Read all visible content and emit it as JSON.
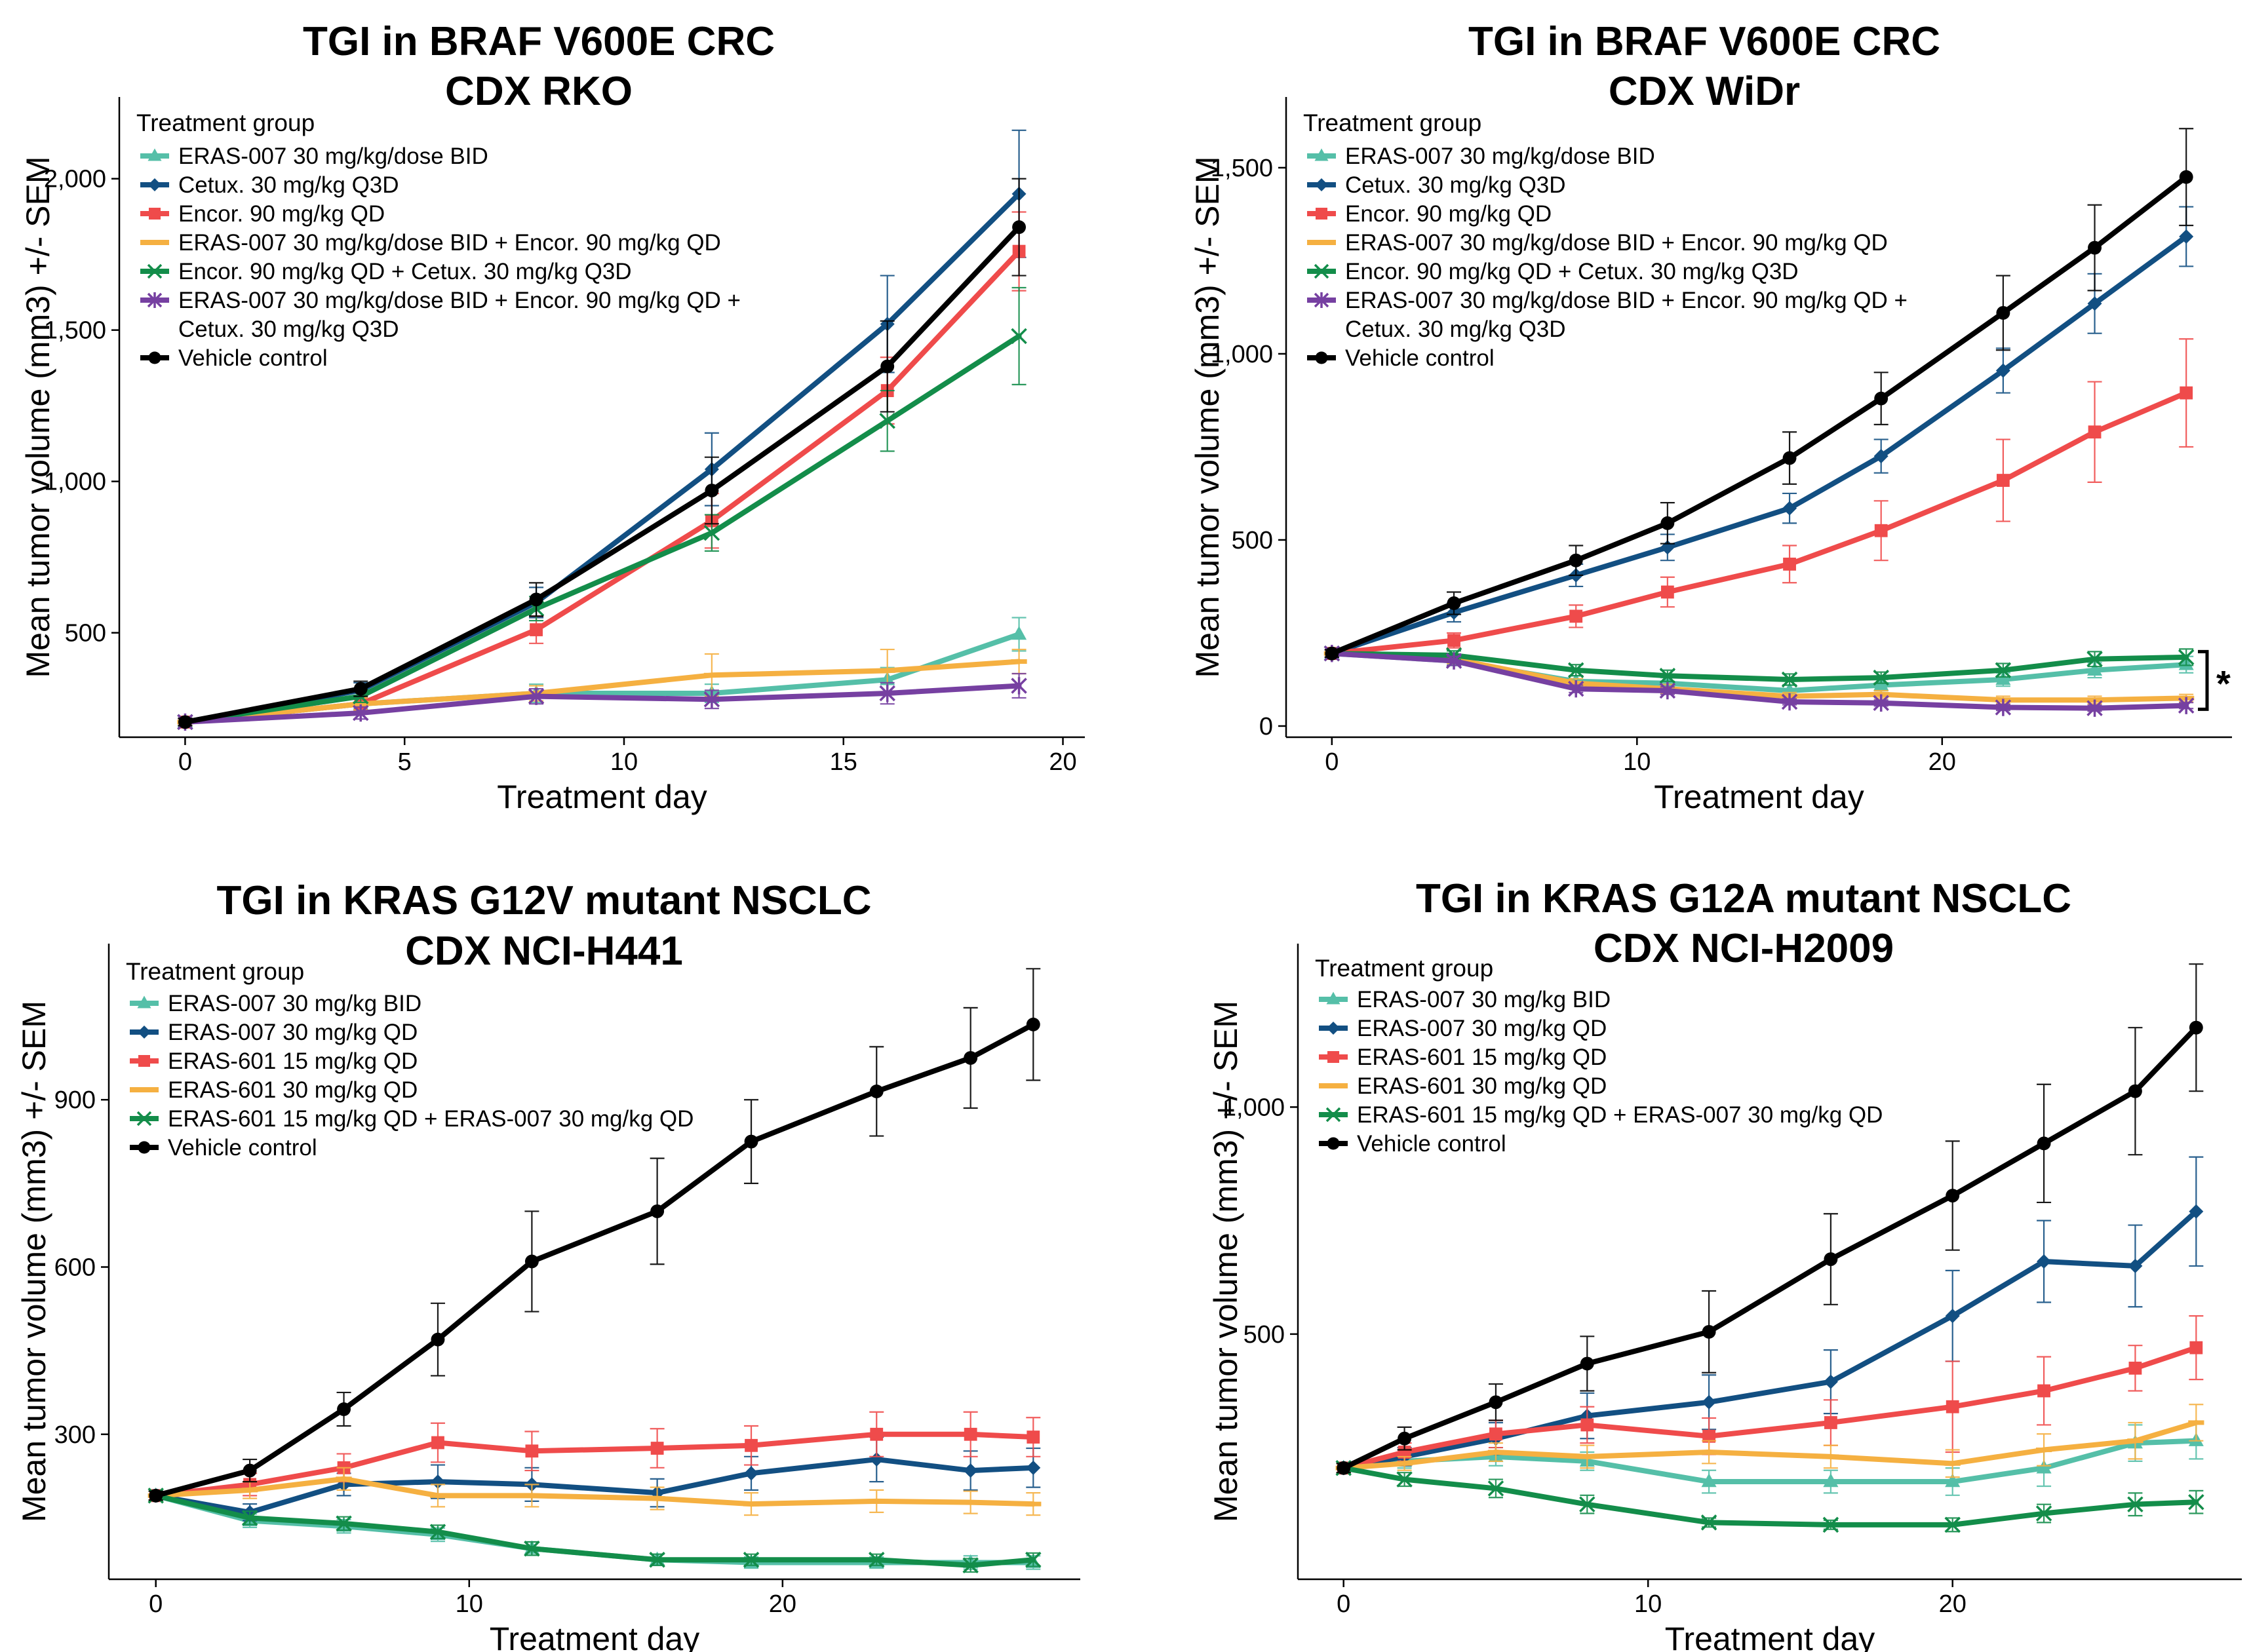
{
  "chart_data": [
    {
      "type": "line",
      "title": "TGI in BRAF V600E CRC",
      "subtitle": "CDX RKO",
      "xlabel": "Treatment day",
      "ylabel": "Mean tumor volume (mm3) +/- SEM",
      "xlim": [
        -1.5,
        20.5
      ],
      "ylim": [
        155,
        2270
      ],
      "xticks": [
        0,
        5,
        10,
        15,
        20
      ],
      "yticks": [
        500,
        1000,
        1500,
        2000
      ],
      "ytick_labels": [
        "500",
        "1,000",
        "1,500",
        "2,000"
      ],
      "legend_title": "Treatment group",
      "legend_position": "top-left",
      "annotation": "",
      "series": [
        {
          "name": "ERAS-007 30 mg/kg/dose BID",
          "color": "#55BFA8",
          "marker": "triangle",
          "x": [
            0,
            4,
            8,
            12,
            16,
            19
          ],
          "values": [
            205,
            265,
            300,
            300,
            345,
            495
          ],
          "err": [
            12,
            20,
            30,
            30,
            40,
            55
          ]
        },
        {
          "name": "Cetux. 30 mg/kg Q3D",
          "color": "#124F82",
          "marker": "diamond",
          "x": [
            0,
            4,
            8,
            12,
            16,
            19
          ],
          "values": [
            205,
            310,
            600,
            1040,
            1520,
            1950
          ],
          "err": [
            12,
            25,
            50,
            120,
            160,
            210
          ]
        },
        {
          "name": "Encor. 90 mg/kg QD",
          "color": "#EF4B4B",
          "marker": "square",
          "x": [
            0,
            4,
            8,
            12,
            16,
            19
          ],
          "values": [
            205,
            265,
            510,
            870,
            1300,
            1760
          ],
          "err": [
            12,
            20,
            45,
            90,
            110,
            130
          ]
        },
        {
          "name": "ERAS-007 30 mg/kg/dose BID + Encor. 90 mg/kg QD",
          "color": "#F5B041",
          "marker": "dash",
          "x": [
            0,
            4,
            8,
            12,
            16,
            19
          ],
          "values": [
            205,
            265,
            300,
            360,
            375,
            405
          ],
          "err": [
            12,
            20,
            25,
            70,
            70,
            40
          ]
        },
        {
          "name": "Encor. 90 mg/kg QD + Cetux. 30 mg/kg Q3D",
          "color": "#138D4A",
          "marker": "x",
          "x": [
            0,
            4,
            8,
            12,
            16,
            19
          ],
          "values": [
            205,
            290,
            580,
            830,
            1200,
            1480
          ],
          "err": [
            12,
            20,
            40,
            60,
            100,
            160
          ]
        },
        {
          "name": "ERAS-007 30 mg/kg/dose BID + Encor. 90 mg/kg QD + Cetux. 30 mg/kg Q3D",
          "color": "#7640A1",
          "marker": "asterisk",
          "x": [
            0,
            4,
            8,
            12,
            16,
            19
          ],
          "values": [
            205,
            235,
            290,
            280,
            300,
            325
          ],
          "err": [
            12,
            20,
            25,
            30,
            35,
            40
          ]
        },
        {
          "name": "Vehicle control",
          "color": "#000000",
          "marker": "circle",
          "x": [
            0,
            4,
            8,
            12,
            16,
            19
          ],
          "values": [
            205,
            315,
            610,
            970,
            1380,
            1840
          ],
          "err": [
            12,
            25,
            55,
            110,
            150,
            160
          ]
        }
      ]
    },
    {
      "type": "line",
      "title": "TGI in BRAF V600E CRC",
      "subtitle": "CDX WiDr",
      "xlabel": "Treatment day",
      "ylabel": "Mean tumor volume (mm3) +/- SEM",
      "xlim": [
        -1.5,
        29.5
      ],
      "ylim": [
        -30,
        1690
      ],
      "xticks": [
        0,
        10,
        20
      ],
      "yticks": [
        0,
        500,
        1000,
        1500
      ],
      "ytick_labels": [
        "0",
        "500",
        "1,000",
        "1,500"
      ],
      "legend_title": "Treatment group",
      "legend_position": "top-left",
      "annotation": "*",
      "series": [
        {
          "name": "ERAS-007 30 mg/kg/dose BID",
          "color": "#55BFA8",
          "marker": "triangle",
          "x": [
            0,
            4,
            8,
            11,
            15,
            18,
            22,
            25,
            28
          ],
          "values": [
            195,
            175,
            120,
            115,
            95,
            110,
            125,
            150,
            165
          ],
          "err": [
            10,
            12,
            15,
            15,
            15,
            15,
            18,
            20,
            22
          ]
        },
        {
          "name": "Cetux. 30 mg/kg Q3D",
          "color": "#124F82",
          "marker": "diamond",
          "x": [
            0,
            4,
            8,
            11,
            15,
            18,
            22,
            25,
            28
          ],
          "values": [
            195,
            305,
            405,
            480,
            585,
            725,
            955,
            1135,
            1315
          ],
          "err": [
            10,
            25,
            30,
            35,
            40,
            45,
            60,
            80,
            80
          ]
        },
        {
          "name": "Encor. 90 mg/kg QD",
          "color": "#EF4B4B",
          "marker": "square",
          "x": [
            0,
            4,
            8,
            11,
            15,
            18,
            22,
            25,
            28
          ],
          "values": [
            195,
            230,
            295,
            360,
            435,
            525,
            660,
            790,
            895
          ],
          "err": [
            10,
            20,
            30,
            40,
            50,
            80,
            110,
            135,
            145
          ]
        },
        {
          "name": "ERAS-007 30 mg/kg/dose BID + Encor. 90 mg/kg QD",
          "color": "#F5B041",
          "marker": "dash",
          "x": [
            0,
            4,
            8,
            11,
            15,
            18,
            22,
            25,
            28
          ],
          "values": [
            195,
            180,
            115,
            100,
            80,
            85,
            70,
            70,
            75
          ],
          "err": [
            10,
            12,
            12,
            12,
            10,
            10,
            10,
            10,
            10
          ]
        },
        {
          "name": "Encor. 90 mg/kg QD + Cetux. 30 mg/kg Q3D",
          "color": "#138D4A",
          "marker": "x",
          "x": [
            0,
            4,
            8,
            11,
            15,
            18,
            22,
            25,
            28
          ],
          "values": [
            195,
            190,
            150,
            135,
            125,
            130,
            150,
            180,
            185
          ],
          "err": [
            10,
            12,
            15,
            15,
            15,
            15,
            18,
            20,
            22
          ]
        },
        {
          "name": "ERAS-007 30 mg/kg/dose BID + Encor. 90 mg/kg QD + Cetux. 30 mg/kg Q3D",
          "color": "#7640A1",
          "marker": "asterisk",
          "x": [
            0,
            4,
            8,
            11,
            15,
            18,
            22,
            25,
            28
          ],
          "values": [
            195,
            175,
            100,
            95,
            65,
            62,
            50,
            48,
            55
          ],
          "err": [
            10,
            12,
            10,
            10,
            8,
            8,
            8,
            8,
            8
          ]
        },
        {
          "name": "Vehicle control",
          "color": "#000000",
          "marker": "circle",
          "x": [
            0,
            4,
            8,
            11,
            15,
            18,
            22,
            25,
            28
          ],
          "values": [
            195,
            330,
            445,
            545,
            720,
            880,
            1110,
            1285,
            1475
          ],
          "err": [
            10,
            30,
            40,
            55,
            70,
            70,
            100,
            115,
            130
          ]
        }
      ]
    },
    {
      "type": "line",
      "title": "TGI in KRAS G12V mutant NSCLC",
      "subtitle": "CDX NCI-H441",
      "xlabel": "Treatment day",
      "ylabel": "Mean tumor volume (mm3) +/- SEM",
      "xlim": [
        -1.5,
        29.5
      ],
      "ylim": [
        40,
        1180
      ],
      "xticks": [
        0,
        10,
        20
      ],
      "yticks": [
        300,
        600,
        900
      ],
      "ytick_labels": [
        "300",
        "600",
        "900"
      ],
      "legend_title": "Treatment group",
      "legend_position": "top-left",
      "annotation": "",
      "series": [
        {
          "name": "ERAS-007 30 mg/kg BID",
          "color": "#55BFA8",
          "marker": "triangle",
          "x": [
            0,
            3,
            6,
            9,
            12,
            16,
            19,
            23,
            26,
            28
          ],
          "values": [
            190,
            145,
            135,
            120,
            95,
            75,
            70,
            70,
            70,
            70
          ],
          "err": [
            8,
            12,
            12,
            12,
            12,
            10,
            10,
            10,
            12,
            12
          ]
        },
        {
          "name": "ERAS-007 30 mg/kg QD",
          "color": "#124F82",
          "marker": "diamond",
          "x": [
            0,
            3,
            6,
            9,
            12,
            16,
            19,
            23,
            26,
            28
          ],
          "values": [
            190,
            160,
            210,
            215,
            210,
            195,
            230,
            255,
            235,
            240
          ],
          "err": [
            8,
            15,
            20,
            30,
            30,
            25,
            30,
            40,
            35,
            35
          ]
        },
        {
          "name": "ERAS-601 15 mg/kg QD",
          "color": "#EF4B4B",
          "marker": "square",
          "x": [
            0,
            3,
            6,
            9,
            12,
            16,
            19,
            23,
            26,
            28
          ],
          "values": [
            190,
            210,
            240,
            285,
            270,
            275,
            280,
            300,
            300,
            295
          ],
          "err": [
            8,
            20,
            25,
            35,
            35,
            35,
            35,
            40,
            40,
            35
          ]
        },
        {
          "name": "ERAS-601 30 mg/kg QD",
          "color": "#F5B041",
          "marker": "dash",
          "x": [
            0,
            3,
            6,
            9,
            12,
            16,
            19,
            23,
            26,
            28
          ],
          "values": [
            190,
            200,
            220,
            190,
            190,
            185,
            175,
            180,
            178,
            175
          ],
          "err": [
            8,
            15,
            20,
            20,
            20,
            20,
            20,
            20,
            20,
            20
          ]
        },
        {
          "name": "ERAS-601 15 mg/kg QD + ERAS-007 30 mg/kg QD",
          "color": "#138D4A",
          "marker": "x",
          "x": [
            0,
            3,
            6,
            9,
            12,
            16,
            19,
            23,
            26,
            28
          ],
          "values": [
            190,
            150,
            140,
            125,
            95,
            75,
            75,
            75,
            65,
            75
          ],
          "err": [
            8,
            12,
            12,
            12,
            12,
            10,
            10,
            10,
            12,
            12
          ]
        },
        {
          "name": "Vehicle control",
          "color": "#000000",
          "marker": "circle",
          "x": [
            0,
            3,
            6,
            9,
            12,
            16,
            19,
            23,
            26,
            28
          ],
          "values": [
            190,
            235,
            345,
            470,
            610,
            700,
            825,
            915,
            975,
            1035
          ],
          "err": [
            8,
            20,
            30,
            65,
            90,
            95,
            75,
            80,
            90,
            100
          ]
        }
      ]
    },
    {
      "type": "line",
      "title": "TGI in KRAS G12A mutant NSCLC",
      "subtitle": "CDX NCI-H2009",
      "xlabel": "Treatment day",
      "ylabel": "Mean tumor volume (mm3) +/- SEM",
      "xlim": [
        -1.5,
        29.5
      ],
      "ylim": [
        -40,
        1360
      ],
      "xticks": [
        0,
        10,
        20
      ],
      "yticks": [
        500,
        1000
      ],
      "ytick_labels": [
        "500",
        "1,000"
      ],
      "legend_title": "Treatment group",
      "legend_position": "top-left",
      "annotation": "",
      "series": [
        {
          "name": "ERAS-007 30 mg/kg BID",
          "color": "#55BFA8",
          "marker": "triangle",
          "x": [
            0,
            2,
            5,
            8,
            12,
            16,
            20,
            23,
            26,
            28
          ],
          "values": [
            205,
            220,
            230,
            220,
            175,
            175,
            175,
            205,
            260,
            265
          ],
          "err": [
            10,
            15,
            20,
            20,
            25,
            25,
            30,
            40,
            40,
            40
          ]
        },
        {
          "name": "ERAS-007 30 mg/kg QD",
          "color": "#124F82",
          "marker": "diamond",
          "x": [
            0,
            2,
            5,
            8,
            12,
            16,
            20,
            23,
            26,
            28
          ],
          "values": [
            205,
            230,
            270,
            320,
            350,
            395,
            540,
            660,
            650,
            770
          ],
          "err": [
            10,
            20,
            35,
            50,
            60,
            70,
            100,
            90,
            90,
            120
          ]
        },
        {
          "name": "ERAS-601 15 mg/kg QD",
          "color": "#EF4B4B",
          "marker": "square",
          "x": [
            0,
            2,
            5,
            8,
            12,
            16,
            20,
            23,
            26,
            28
          ],
          "values": [
            205,
            240,
            280,
            300,
            275,
            305,
            340,
            375,
            425,
            470
          ],
          "err": [
            10,
            20,
            30,
            40,
            40,
            50,
            100,
            75,
            50,
            70
          ]
        },
        {
          "name": "ERAS-601 30 mg/kg QD",
          "color": "#F5B041",
          "marker": "dash",
          "x": [
            0,
            2,
            5,
            8,
            12,
            16,
            20,
            23,
            26,
            28
          ],
          "values": [
            205,
            215,
            240,
            230,
            240,
            230,
            215,
            245,
            265,
            305
          ],
          "err": [
            10,
            15,
            20,
            25,
            25,
            25,
            30,
            35,
            40,
            40
          ]
        },
        {
          "name": "ERAS-601 15 mg/kg QD + ERAS-007 30 mg/kg QD",
          "color": "#138D4A",
          "marker": "x",
          "x": [
            0,
            2,
            5,
            8,
            12,
            16,
            20,
            23,
            26,
            28
          ],
          "values": [
            205,
            180,
            160,
            125,
            85,
            80,
            80,
            105,
            125,
            130
          ],
          "err": [
            10,
            15,
            20,
            20,
            10,
            10,
            15,
            20,
            25,
            25
          ]
        },
        {
          "name": "Vehicle control",
          "color": "#000000",
          "marker": "circle",
          "x": [
            0,
            2,
            5,
            8,
            12,
            16,
            20,
            23,
            26,
            28
          ],
          "values": [
            205,
            270,
            350,
            435,
            505,
            665,
            805,
            920,
            1035,
            1175
          ],
          "err": [
            10,
            25,
            40,
            60,
            90,
            100,
            120,
            130,
            140,
            140
          ]
        }
      ]
    }
  ]
}
